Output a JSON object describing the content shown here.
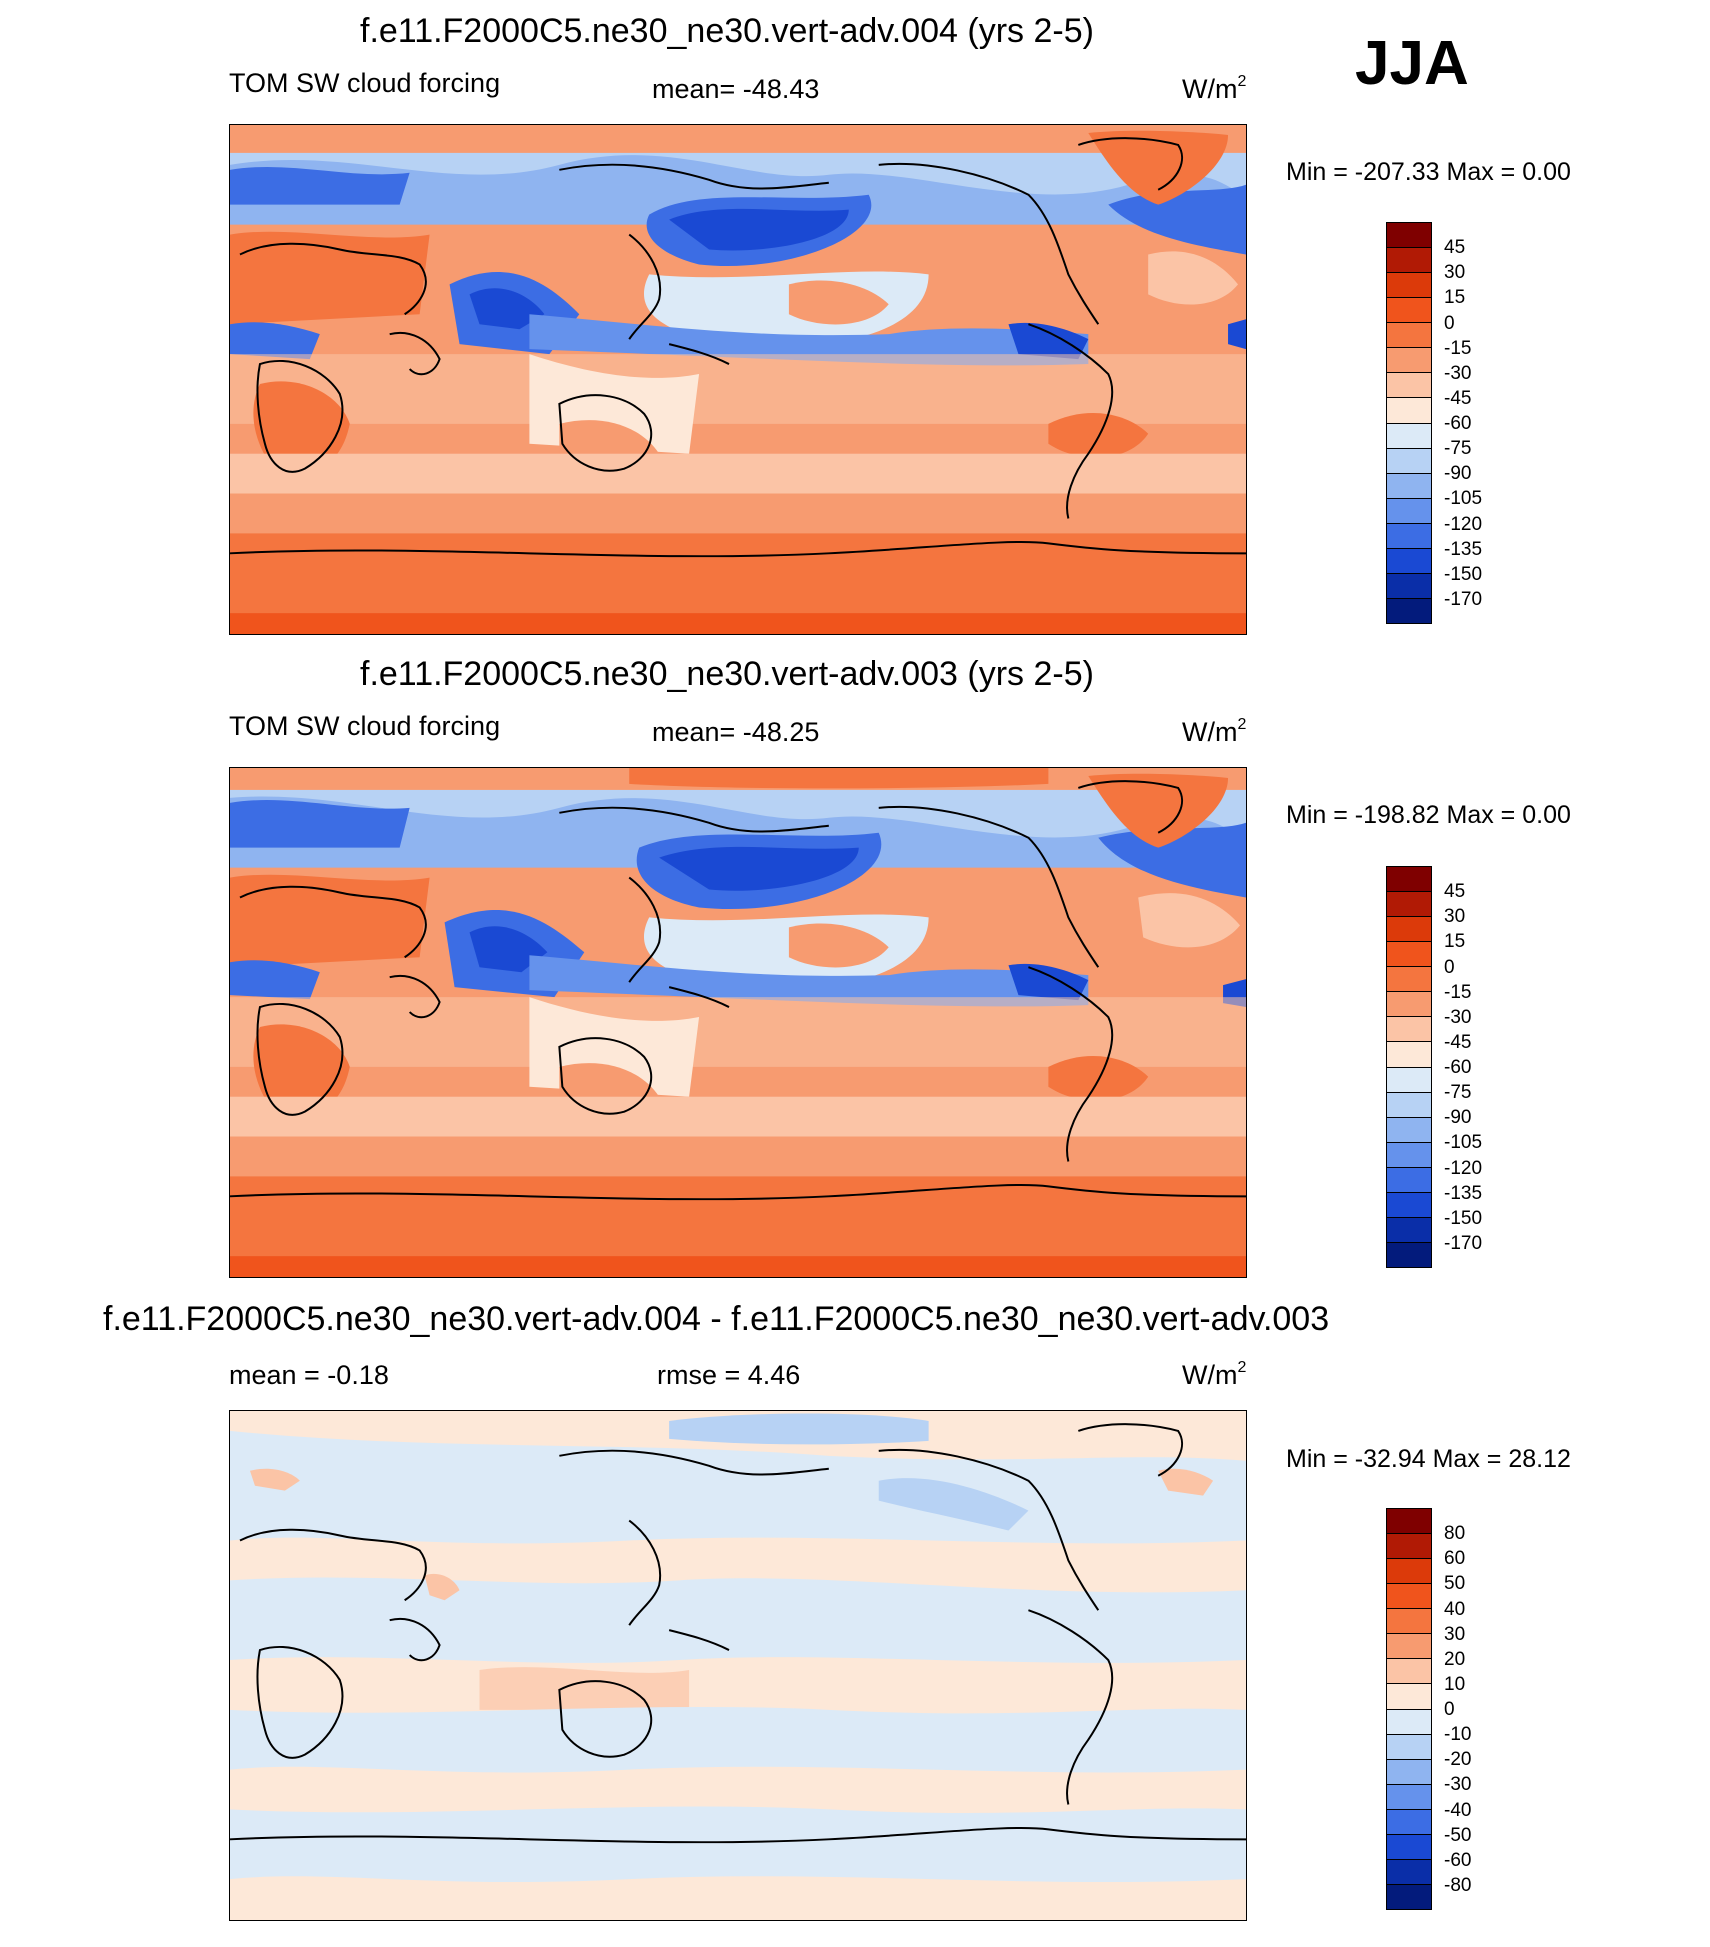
{
  "season": "JJA",
  "panels": [
    {
      "title": "f.e11.F2000C5.ne30_ne30.vert-adv.004 (yrs 2-5)",
      "left_label": "TOM SW cloud forcing",
      "center_label": "mean= -48.43",
      "unit": "W/m",
      "unit_sup": "2",
      "minmax": "Min = -207.33 Max =    0.00",
      "colorbar_labels": [
        "45",
        "30",
        "15",
        "0",
        "-15",
        "-30",
        "-45",
        "-60",
        "-75",
        "-90",
        "-105",
        "-120",
        "-135",
        "-150",
        "-170"
      ],
      "colorbar_colors": [
        "#7f0000",
        "#b11a05",
        "#dc3a0a",
        "#f0541c",
        "#f4753f",
        "#f79b70",
        "#fbc4a6",
        "#fde8d8",
        "#dceaf7",
        "#b7d2f4",
        "#8fb4f0",
        "#6592ec",
        "#3c6de4",
        "#1a49d3",
        "#0a2ea8",
        "#031b7c"
      ]
    },
    {
      "title": "f.e11.F2000C5.ne30_ne30.vert-adv.003 (yrs 2-5)",
      "left_label": "TOM SW cloud forcing",
      "center_label": "mean= -48.25",
      "unit": "W/m",
      "unit_sup": "2",
      "minmax": "Min = -198.82 Max =    0.00",
      "colorbar_labels": [
        "45",
        "30",
        "15",
        "0",
        "-15",
        "-30",
        "-45",
        "-60",
        "-75",
        "-90",
        "-105",
        "-120",
        "-135",
        "-150",
        "-170"
      ],
      "colorbar_colors": [
        "#7f0000",
        "#b11a05",
        "#dc3a0a",
        "#f0541c",
        "#f4753f",
        "#f79b70",
        "#fbc4a6",
        "#fde8d8",
        "#dceaf7",
        "#b7d2f4",
        "#8fb4f0",
        "#6592ec",
        "#3c6de4",
        "#1a49d3",
        "#0a2ea8",
        "#031b7c"
      ]
    },
    {
      "title": "f.e11.F2000C5.ne30_ne30.vert-adv.004 - f.e11.F2000C5.ne30_ne30.vert-adv.003",
      "left_label": "mean =  -0.18",
      "center_label": "rmse =   4.46",
      "unit": "W/m",
      "unit_sup": "2",
      "minmax": "Min = -32.94 Max =  28.12",
      "colorbar_labels": [
        "80",
        "60",
        "50",
        "40",
        "30",
        "20",
        "10",
        "0",
        "-10",
        "-20",
        "-30",
        "-40",
        "-50",
        "-60",
        "-80"
      ],
      "colorbar_colors": [
        "#7f0000",
        "#b11a05",
        "#dc3a0a",
        "#f0541c",
        "#f4753f",
        "#f79b70",
        "#fbc4a6",
        "#fde8d8",
        "#dceaf7",
        "#b7d2f4",
        "#8fb4f0",
        "#6592ec",
        "#3c6de4",
        "#1a49d3",
        "#0a2ea8",
        "#031b7c"
      ]
    }
  ]
}
